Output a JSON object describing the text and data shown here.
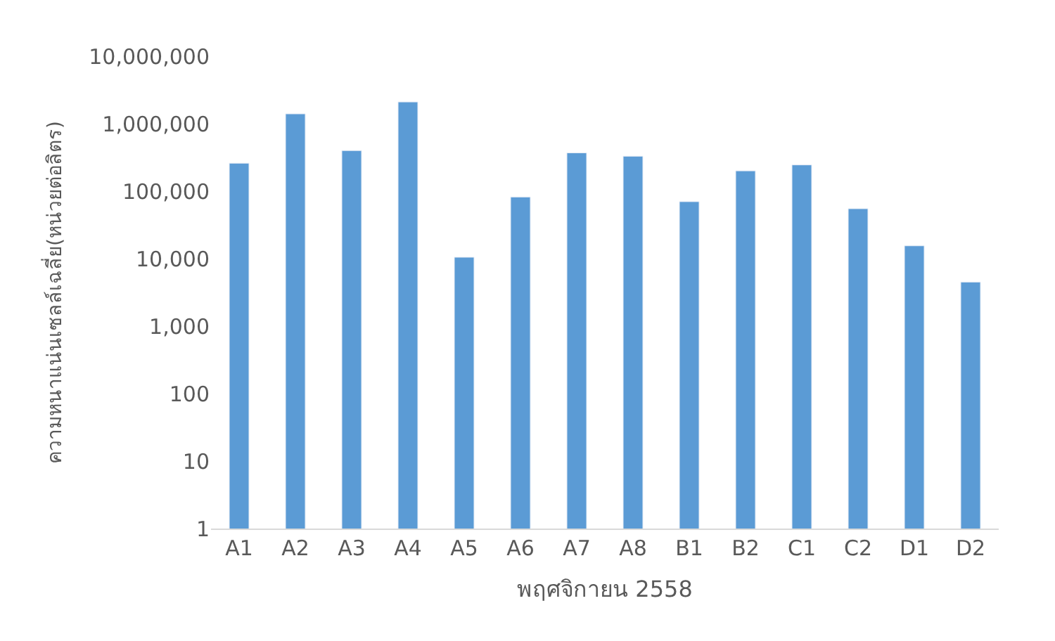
{
  "chart_data": {
    "type": "bar",
    "xlabel": "พฤศจิกายน 2558",
    "ylabel": "ความหนาแน่นเซลล์เฉลี่ย(หน่วยต่อลิตร)",
    "categories": [
      "A1",
      "A2",
      "A3",
      "A4",
      "A5",
      "A6",
      "A7",
      "A8",
      "B1",
      "B2",
      "C1",
      "C2",
      "D1",
      "D2"
    ],
    "series": [
      {
        "color": "#5b9bd5",
        "values": [
          260000,
          1400000,
          400000,
          2100000,
          10500,
          82000,
          370000,
          330000,
          70000,
          200000,
          245000,
          55000,
          15500,
          4500
        ]
      }
    ],
    "log": true,
    "ylim": [
      1,
      10000000
    ],
    "yticks": [
      {
        "value": 1,
        "label": "1"
      },
      {
        "value": 10,
        "label": "10"
      },
      {
        "value": 100,
        "label": "100"
      },
      {
        "value": 1000,
        "label": "1,000"
      },
      {
        "value": 10000,
        "label": "10,000"
      },
      {
        "value": 100000,
        "label": "100,000"
      },
      {
        "value": 1000000,
        "label": "1,000,000"
      },
      {
        "value": 10000000,
        "label": "10,000,000"
      }
    ],
    "legend": false
  }
}
